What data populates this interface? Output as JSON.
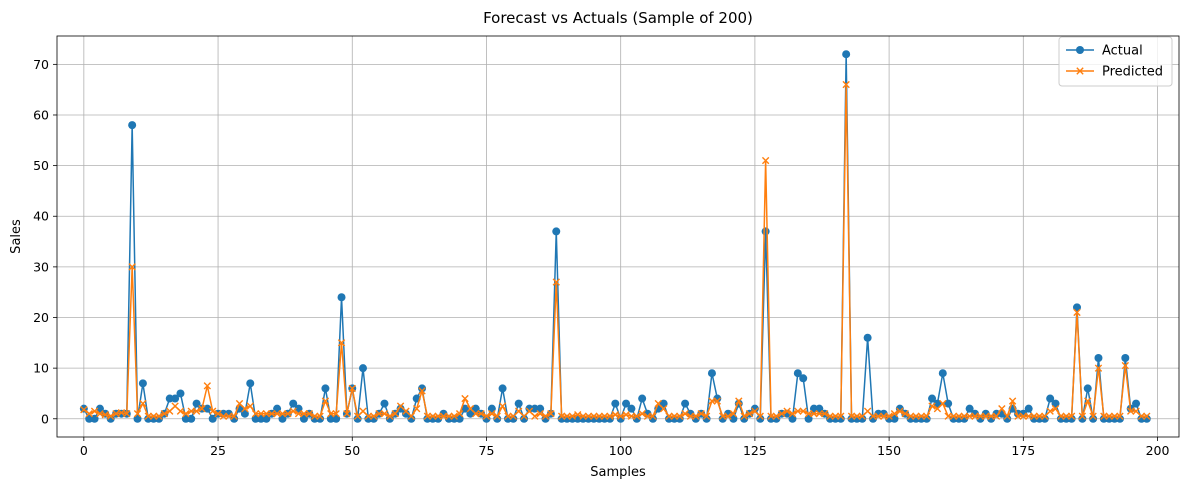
{
  "chart_data": {
    "type": "line",
    "title": "Forecast vs Actuals (Sample of 200)",
    "xlabel": "Samples",
    "ylabel": "Sales",
    "xlim": [
      -5,
      204
    ],
    "ylim": [
      -3.6,
      75.6
    ],
    "xticks": [
      0,
      25,
      50,
      75,
      100,
      125,
      150,
      175,
      200
    ],
    "yticks": [
      0,
      10,
      20,
      30,
      40,
      50,
      60,
      70
    ],
    "grid": true,
    "legend_position": "top-right",
    "series": [
      {
        "name": "Actual",
        "color": "#1f77b4",
        "marker": "circle",
        "values": [
          2,
          0,
          0,
          2,
          1,
          0,
          1,
          1,
          1,
          58,
          0,
          7,
          0,
          0,
          0,
          1,
          4,
          4,
          5,
          0,
          0,
          3,
          2,
          2,
          0,
          1,
          1,
          1,
          0,
          2,
          1,
          7,
          0,
          0,
          0,
          1,
          2,
          0,
          1,
          3,
          2,
          0,
          1,
          0,
          0,
          6,
          0,
          0,
          24,
          1,
          6,
          0,
          10,
          0,
          0,
          1,
          3,
          0,
          1,
          2,
          1,
          0,
          4,
          6,
          0,
          0,
          0,
          1,
          0,
          0,
          0,
          2,
          1,
          2,
          1,
          0,
          2,
          0,
          6,
          0,
          0,
          3,
          0,
          2,
          2,
          2,
          0,
          1,
          37,
          0,
          0,
          0,
          0,
          0,
          0,
          0,
          0,
          0,
          0,
          3,
          0,
          3,
          2,
          0,
          4,
          1,
          0,
          2,
          3,
          0,
          0,
          0,
          3,
          1,
          0,
          1,
          0,
          9,
          4,
          0,
          1,
          0,
          3,
          0,
          1,
          2,
          0,
          37,
          0,
          0,
          1,
          1,
          0,
          9,
          8,
          0,
          2,
          2,
          1,
          0,
          0,
          0,
          72,
          0,
          0,
          0,
          16,
          0,
          1,
          1,
          0,
          0,
          2,
          1,
          0,
          0,
          0,
          0,
          4,
          3,
          9,
          3,
          0,
          0,
          0,
          2,
          1,
          0,
          1,
          0,
          1,
          1,
          0,
          2,
          1,
          1,
          2,
          0,
          0,
          0,
          4,
          3,
          0,
          0,
          0,
          22,
          0,
          6,
          0,
          12,
          0,
          0,
          0,
          0,
          12,
          2,
          3,
          0,
          0
        ]
      },
      {
        "name": "Predicted",
        "color": "#ff7f0e",
        "marker": "x",
        "values": [
          1.8,
          1.0,
          1.5,
          1.0,
          0.8,
          0.5,
          1.0,
          1.2,
          1.0,
          30.0,
          1.0,
          3.0,
          0.5,
          0.5,
          0.5,
          1.0,
          1.5,
          2.5,
          1.5,
          1.0,
          1.5,
          1.5,
          2.0,
          6.5,
          1.5,
          1.0,
          0.5,
          0.5,
          0.5,
          3.0,
          2.0,
          2.5,
          1.0,
          1.0,
          1.0,
          1.0,
          1.0,
          1.0,
          1.0,
          1.5,
          1.0,
          1.0,
          1.0,
          0.5,
          0.5,
          3.5,
          1.0,
          1.0,
          15.0,
          1.0,
          6.0,
          0.5,
          1.5,
          0.5,
          0.5,
          1.0,
          1.0,
          0.5,
          1.0,
          2.5,
          1.5,
          0.5,
          2.0,
          5.5,
          0.5,
          0.5,
          0.5,
          0.5,
          0.5,
          0.5,
          1.0,
          4.0,
          2.0,
          1.0,
          1.0,
          0.5,
          1.0,
          0.5,
          2.5,
          0.5,
          0.5,
          1.5,
          0.5,
          1.5,
          0.5,
          1.0,
          0.5,
          1.0,
          27.0,
          0.5,
          0.5,
          0.5,
          0.8,
          0.5,
          0.5,
          0.5,
          0.5,
          0.5,
          0.5,
          0.8,
          0.5,
          0.8,
          0.5,
          0.5,
          1.0,
          0.5,
          0.5,
          3.0,
          2.0,
          0.5,
          0.5,
          0.5,
          1.0,
          0.5,
          0.5,
          1.0,
          0.5,
          3.5,
          3.5,
          0.5,
          0.5,
          1.0,
          3.5,
          0.5,
          1.0,
          1.5,
          0.5,
          51.0,
          0.5,
          0.5,
          1.0,
          1.5,
          1.0,
          1.5,
          1.5,
          1.0,
          1.0,
          1.0,
          1.0,
          0.5,
          0.5,
          0.5,
          66.0,
          0.5,
          0.5,
          0.5,
          1.5,
          0.5,
          0.5,
          0.5,
          0.5,
          1.0,
          1.5,
          1.0,
          0.5,
          0.5,
          0.5,
          0.5,
          2.5,
          2.0,
          3.0,
          0.5,
          0.5,
          0.5,
          0.5,
          0.5,
          0.5,
          0.5,
          0.5,
          0.5,
          0.5,
          2.0,
          0.5,
          3.5,
          0.5,
          0.5,
          0.5,
          0.5,
          0.5,
          0.5,
          1.5,
          2.0,
          0.5,
          0.5,
          0.5,
          21.0,
          0.5,
          3.5,
          0.5,
          10.0,
          0.5,
          0.5,
          0.5,
          0.5,
          10.5,
          1.5,
          1.5,
          0.5,
          0.5
        ]
      }
    ]
  }
}
